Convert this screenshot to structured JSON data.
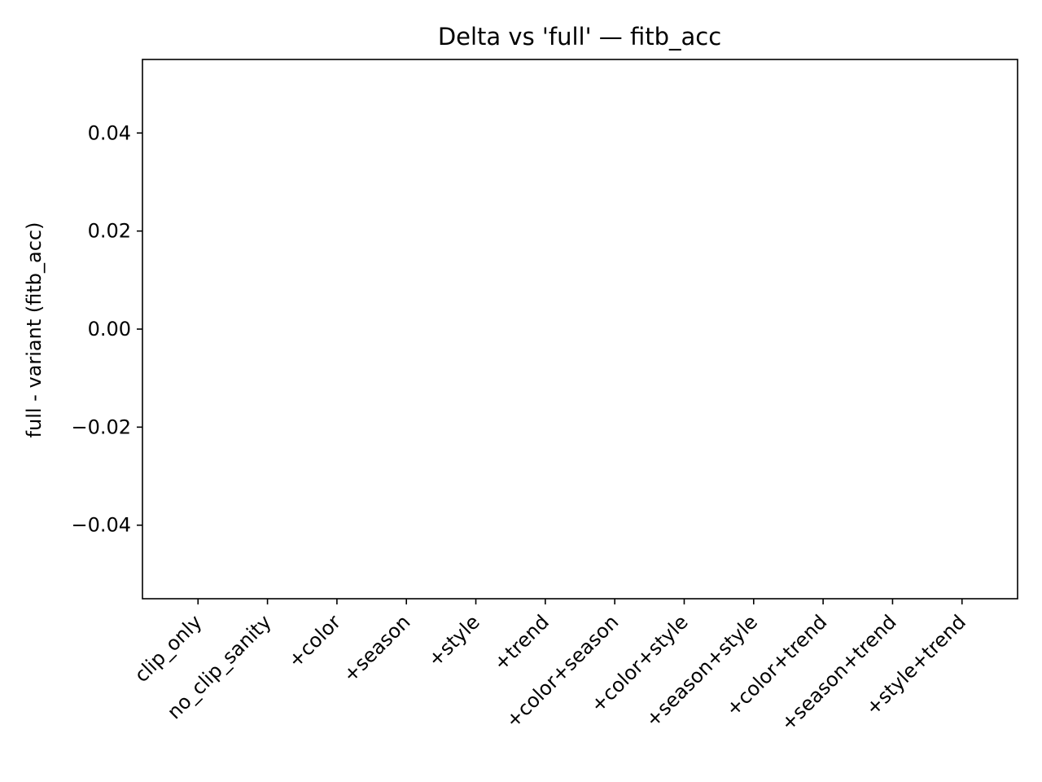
{
  "chart_data": {
    "type": "bar",
    "title": "Delta vs 'full' — fitb_acc",
    "xlabel": "",
    "ylabel": "full - variant (fitb_acc)",
    "categories": [
      "clip_only",
      "no_clip_sanity",
      "+color",
      "+season",
      "+style",
      "+trend",
      "+color+season",
      "+color+style",
      "+season+style",
      "+color+trend",
      "+season+trend",
      "+style+trend"
    ],
    "series": [
      {
        "values": [
          0,
          0,
          0,
          0,
          0,
          0,
          0,
          0,
          0,
          0,
          0,
          0
        ]
      }
    ],
    "ylim": [
      -0.055,
      0.055
    ],
    "yticks": [
      -0.04,
      -0.02,
      0.0,
      0.02,
      0.04
    ],
    "ytick_labels": [
      "−0.04",
      "−0.02",
      "0.00",
      "0.02",
      "0.04"
    ],
    "grid": false,
    "legend": "none"
  }
}
